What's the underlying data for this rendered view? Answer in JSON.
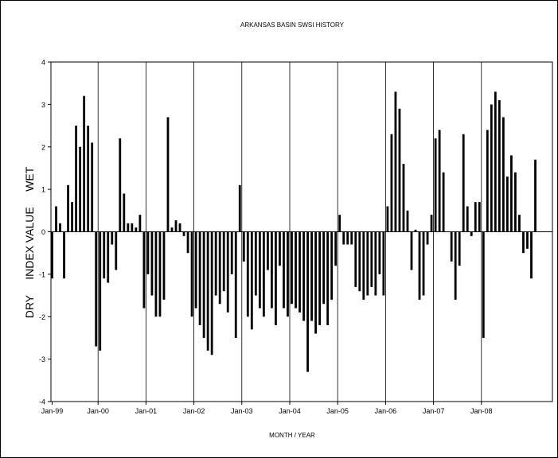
{
  "chart_data": {
    "type": "bar",
    "title": "ARKANSAS BASIN SWSI HISTORY",
    "xlabel": "MONTH / YEAR",
    "ylabel": "DRY     INDEX VALUE     WET",
    "ylim": [
      -4,
      4
    ],
    "yticks": [
      "4",
      "3",
      "2",
      "1",
      "0",
      "-1",
      "-2",
      "-3",
      "-4"
    ],
    "xticks": [
      "Jan-99",
      "Jan-00",
      "Jan-01",
      "Jan-02",
      "Jan-03",
      "Jan-04",
      "Jan-05",
      "Jan-06",
      "Jan-07",
      "Jan-08"
    ],
    "grid": "vertical lines at each January",
    "series": [
      {
        "values": [
          -1.1,
          0.6,
          0.2,
          -1.1,
          1.1,
          0.7,
          2.5,
          2.0,
          3.2,
          2.5,
          2.1,
          -2.7,
          -2.8,
          -1.1,
          -1.2,
          -0.3,
          -0.9,
          2.2,
          0.9,
          0.2,
          0.2,
          0.1,
          0.4,
          -1.8,
          -1.0,
          -1.5,
          -2.0,
          -2.0,
          -1.6,
          2.7,
          0.1,
          0.27,
          0.2,
          -0.1,
          -0.5,
          -2.0,
          -1.8,
          -2.2,
          -2.5,
          -2.8,
          -2.9,
          -1.5,
          -1.7,
          -1.4,
          -1.9,
          -1.0,
          -2.5,
          1.1,
          -0.7,
          -2.0,
          -2.3,
          -1.5,
          -1.8,
          -2.0,
          -0.9,
          -1.8,
          -2.2,
          -0.8,
          -1.8,
          -2.0,
          -1.7,
          -1.8,
          -1.9,
          -2.1,
          -3.3,
          -2.1,
          -2.4,
          -2.2,
          -1.7,
          -2.2,
          -1.6,
          -0.8,
          0.4,
          -0.3,
          -0.3,
          -0.3,
          -1.3,
          -1.4,
          -1.6,
          -1.5,
          -1.3,
          -1.5,
          -1.0,
          -1.5,
          0.6,
          2.3,
          3.3,
          2.9,
          1.6,
          0.5,
          -0.9,
          0.05,
          -1.6,
          -1.5,
          -0.3,
          0.4,
          2.2,
          2.4,
          1.4,
          0.0,
          -0.7,
          -1.6,
          -0.8,
          2.3,
          0.6,
          -0.1,
          0.7,
          0.7,
          -2.5,
          2.4,
          3.0,
          3.3,
          3.1,
          2.7,
          1.3,
          1.8,
          1.4,
          0.4,
          -0.5,
          -0.4,
          -1.1,
          1.7
        ]
      }
    ]
  }
}
